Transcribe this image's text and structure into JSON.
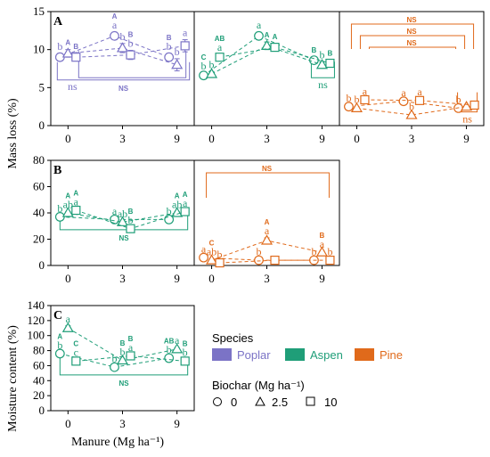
{
  "colors": {
    "Poplar": "#7b73c6",
    "Aspen": "#1f9e78",
    "Pine": "#e06a1b"
  },
  "legend": {
    "species_title": "Species",
    "species": [
      "Poplar",
      "Aspen",
      "Pine"
    ],
    "biochar_title": "Biochar (Mg ha⁻¹)",
    "biochar": [
      {
        "label": "0",
        "marker": "circle"
      },
      {
        "label": "2.5",
        "marker": "triangle"
      },
      {
        "label": "10",
        "marker": "square"
      }
    ]
  },
  "labels": {
    "y_top": "Mass loss (%)",
    "y_bottom": "Moisture content (%)",
    "x_bottom": "Manure (Mg ha⁻¹)"
  },
  "chart_data": [
    {
      "type": "line",
      "panel": "A",
      "species": "Poplar",
      "row": 1,
      "x": [
        0,
        3,
        9
      ],
      "xticks": [
        "0",
        "3",
        "9"
      ],
      "ylim": [
        0,
        15
      ],
      "yticks": [
        0,
        5,
        10,
        15
      ],
      "ylabel": "Mass loss (%)",
      "series": [
        {
          "name": "0",
          "marker": "circle",
          "values": [
            9.0,
            11.8,
            9.0
          ],
          "err": [
            0.5,
            0.5,
            0.5
          ],
          "letters": [
            "b",
            "a",
            "b"
          ],
          "caps": [
            "",
            "A",
            "B"
          ]
        },
        {
          "name": "2.5",
          "marker": "triangle",
          "values": [
            9.5,
            10.2,
            8.0
          ],
          "err": [
            0.5,
            0.6,
            0.8
          ],
          "letters": [
            "",
            "b",
            "b"
          ],
          "caps": [
            "A",
            "",
            ""
          ]
        },
        {
          "name": "10",
          "marker": "square",
          "values": [
            9.0,
            9.3,
            10.5
          ],
          "err": [
            0.5,
            0.6,
            0.8
          ],
          "letters": [
            "",
            "b",
            "a"
          ],
          "caps": [
            "B",
            "B",
            ""
          ]
        }
      ],
      "brackets": [
        {
          "label": "ns",
          "style": "lower"
        },
        {
          "label": "NS",
          "style": "lower-long"
        }
      ]
    },
    {
      "type": "line",
      "panel": "A",
      "species": "Aspen",
      "row": 1,
      "x": [
        0,
        3,
        9
      ],
      "xticks": [
        "0",
        "3",
        "9"
      ],
      "ylim": [
        0,
        15
      ],
      "series": [
        {
          "name": "0",
          "marker": "circle",
          "values": [
            6.6,
            11.8,
            8.6
          ],
          "err": [
            0.3,
            0.5,
            0.4
          ],
          "letters": [
            "b",
            "a",
            ""
          ],
          "caps": [
            "C",
            "",
            "B"
          ]
        },
        {
          "name": "2.5",
          "marker": "triangle",
          "values": [
            6.8,
            10.5,
            8.0
          ],
          "err": [
            0.3,
            0.5,
            0.4
          ],
          "letters": [
            "b",
            "",
            "b"
          ],
          "caps": [
            "",
            "A",
            ""
          ]
        },
        {
          "name": "10",
          "marker": "square",
          "values": [
            9.0,
            10.3,
            8.2
          ],
          "err": [
            0.4,
            0.5,
            0.4
          ],
          "letters": [
            "a",
            "",
            ""
          ],
          "caps": [
            "AB",
            "A",
            "B"
          ]
        }
      ],
      "brackets": [
        {
          "label": "ns",
          "style": "lower"
        }
      ]
    },
    {
      "type": "line",
      "panel": "A",
      "species": "Pine",
      "row": 1,
      "x": [
        0,
        3,
        9
      ],
      "xticks": [
        "0",
        "3",
        "9"
      ],
      "ylim": [
        0,
        15
      ],
      "series": [
        {
          "name": "0",
          "marker": "circle",
          "values": [
            2.5,
            3.2,
            2.3
          ],
          "err": [
            0.2,
            0.2,
            0.2
          ],
          "letters": [
            "b",
            "a",
            "b"
          ],
          "caps": [
            "",
            "",
            ""
          ]
        },
        {
          "name": "2.5",
          "marker": "triangle",
          "values": [
            2.3,
            1.4,
            2.5
          ],
          "err": [
            0.2,
            0.2,
            0.2
          ],
          "letters": [
            "b",
            "b",
            ""
          ],
          "caps": [
            "",
            "",
            ""
          ]
        },
        {
          "name": "10",
          "marker": "square",
          "values": [
            3.4,
            3.3,
            2.7
          ],
          "err": [
            0.2,
            0.2,
            0.2
          ],
          "letters": [
            "a",
            "a",
            ""
          ],
          "caps": [
            "",
            "",
            ""
          ]
        }
      ],
      "brackets": [
        {
          "label": "NS",
          "style": "upper"
        },
        {
          "label": "NS",
          "style": "upper"
        },
        {
          "label": "NS",
          "style": "upper"
        },
        {
          "label": "ns",
          "style": "lower"
        }
      ]
    },
    {
      "type": "line",
      "panel": "B",
      "species": "Aspen",
      "row": 2,
      "x": [
        0,
        3,
        9
      ],
      "xticks": [
        "0",
        "3",
        "9"
      ],
      "ylim": [
        0,
        80
      ],
      "yticks": [
        0,
        20,
        40,
        60,
        80
      ],
      "series": [
        {
          "name": "0",
          "marker": "circle",
          "values": [
            37,
            35,
            35
          ],
          "err": [
            1,
            1,
            1
          ],
          "letters": [
            "b",
            "a",
            "b"
          ],
          "caps": [
            "",
            "",
            ""
          ]
        },
        {
          "name": "2.5",
          "marker": "triangle",
          "values": [
            40,
            33,
            40
          ],
          "err": [
            1,
            1,
            1
          ],
          "letters": [
            "ab",
            "ab",
            "ab"
          ],
          "caps": [
            "A",
            "",
            "A"
          ]
        },
        {
          "name": "10",
          "marker": "square",
          "values": [
            42,
            28,
            41
          ],
          "err": [
            1,
            1,
            1
          ],
          "letters": [
            "a",
            "b",
            "a"
          ],
          "caps": [
            "A",
            "B",
            "A"
          ]
        }
      ],
      "brackets": [
        {
          "label": "NS",
          "style": "lower-long"
        }
      ]
    },
    {
      "type": "line",
      "panel": "B",
      "species": "Pine",
      "row": 2,
      "x": [
        0,
        3,
        9
      ],
      "xticks": [
        "0",
        "3",
        "9"
      ],
      "ylim": [
        0,
        80
      ],
      "series": [
        {
          "name": "0",
          "marker": "circle",
          "values": [
            6,
            4,
            4
          ],
          "err": [
            1,
            1,
            1
          ],
          "letters": [
            "a",
            "b",
            "b"
          ],
          "caps": [
            "",
            "",
            ""
          ]
        },
        {
          "name": "2.5",
          "marker": "triangle",
          "values": [
            4,
            19,
            10
          ],
          "err": [
            1,
            2,
            1
          ],
          "letters": [
            "ab",
            "a",
            "a"
          ],
          "caps": [
            "C",
            "A",
            "B"
          ]
        },
        {
          "name": "10",
          "marker": "square",
          "values": [
            2,
            4,
            4
          ],
          "err": [
            1,
            1,
            1
          ],
          "letters": [
            "b",
            "",
            "b"
          ],
          "caps": [
            "",
            "",
            ""
          ]
        }
      ],
      "brackets": [
        {
          "label": "NS",
          "style": "upper"
        }
      ]
    },
    {
      "type": "line",
      "panel": "C",
      "species": "Aspen",
      "row": 3,
      "x": [
        0,
        3,
        9
      ],
      "xticks": [
        "0",
        "3",
        "9"
      ],
      "ylim": [
        0,
        140
      ],
      "yticks": [
        0,
        20,
        40,
        60,
        80,
        100,
        120,
        140
      ],
      "xlabel": "Manure (Mg ha⁻¹)",
      "ylabel": "Moisture content (%)",
      "series": [
        {
          "name": "0",
          "marker": "circle",
          "values": [
            76,
            58,
            70
          ],
          "err": [
            2,
            2,
            2
          ],
          "letters": [
            "b",
            "b",
            "b"
          ],
          "caps": [
            "A",
            "",
            "AB"
          ]
        },
        {
          "name": "2.5",
          "marker": "triangle",
          "values": [
            110,
            67,
            82
          ],
          "err": [
            3,
            2,
            2
          ],
          "letters": [
            "a",
            "b",
            "a"
          ],
          "caps": [
            "",
            "B",
            ""
          ]
        },
        {
          "name": "10",
          "marker": "square",
          "values": [
            66,
            73,
            66
          ],
          "err": [
            2,
            2,
            2
          ],
          "letters": [
            "c",
            "a",
            "b"
          ],
          "caps": [
            "C",
            "B",
            "B"
          ]
        }
      ],
      "brackets": [
        {
          "label": "NS",
          "style": "lower-long"
        }
      ]
    }
  ]
}
